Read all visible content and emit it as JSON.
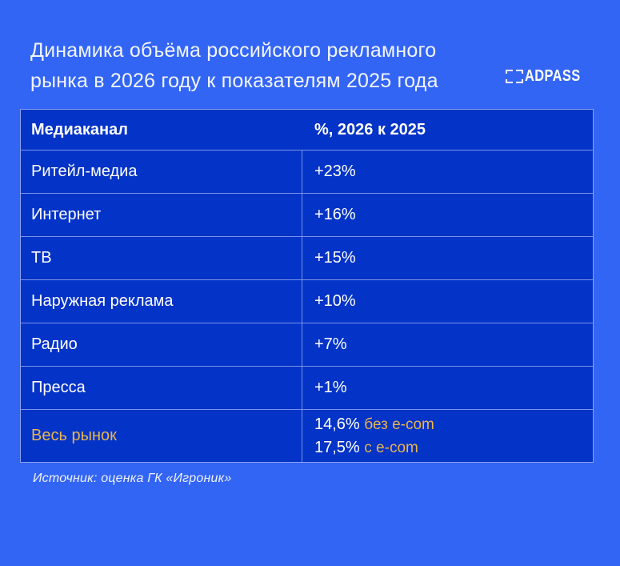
{
  "page": {
    "background_color": "#3365f5",
    "table_background_color": "#0433c7",
    "accent_color": "#e9b54e"
  },
  "header": {
    "title_line1": "Динамика объёма российского рекламного",
    "title_line2": "рынка в 2026 году к показателям 2025 года",
    "logo_text": "ADPASS"
  },
  "table": {
    "columns": [
      "Медиаканал",
      "%, 2026 к 2025"
    ],
    "rows": [
      {
        "channel": "Ритейл-медиа",
        "value": "+23%"
      },
      {
        "channel": "Интернет",
        "value": "+16%"
      },
      {
        "channel": "ТВ",
        "value": "+15%"
      },
      {
        "channel": "Наружная реклама",
        "value": "+10%"
      },
      {
        "channel": "Радио",
        "value": "+7%"
      },
      {
        "channel": "Пресса",
        "value": "+1%"
      }
    ],
    "total_row": {
      "channel": "Весь рынок",
      "value1_number": "14,6%",
      "value1_label": "без e-com",
      "value2_number": "17,5%",
      "value2_label": "с e-com"
    }
  },
  "footer": {
    "source": "Источник: оценка ГК «Игроник»"
  },
  "chart_data": {
    "type": "table",
    "title": "Динамика объёма российского рекламного рынка в 2026 году к показателям 2025 года",
    "columns": [
      "Медиаканал",
      "%, 2026 к 2025"
    ],
    "rows": [
      [
        "Ритейл-медиа",
        "+23%"
      ],
      [
        "Интернет",
        "+16%"
      ],
      [
        "ТВ",
        "+15%"
      ],
      [
        "Наружная реклама",
        "+10%"
      ],
      [
        "Радио",
        "+7%"
      ],
      [
        "Пресса",
        "+1%"
      ],
      [
        "Весь рынок",
        "14,6% без e-com; 17,5% с e-com"
      ]
    ],
    "values_percent": {
      "Ритейл-медиа": 23,
      "Интернет": 16,
      "ТВ": 15,
      "Наружная реклама": 10,
      "Радио": 7,
      "Пресса": 1,
      "Весь рынок без e-com": 14.6,
      "Весь рынок с e-com": 17.5
    },
    "source": "Источник: оценка ГК «Игроник»"
  }
}
